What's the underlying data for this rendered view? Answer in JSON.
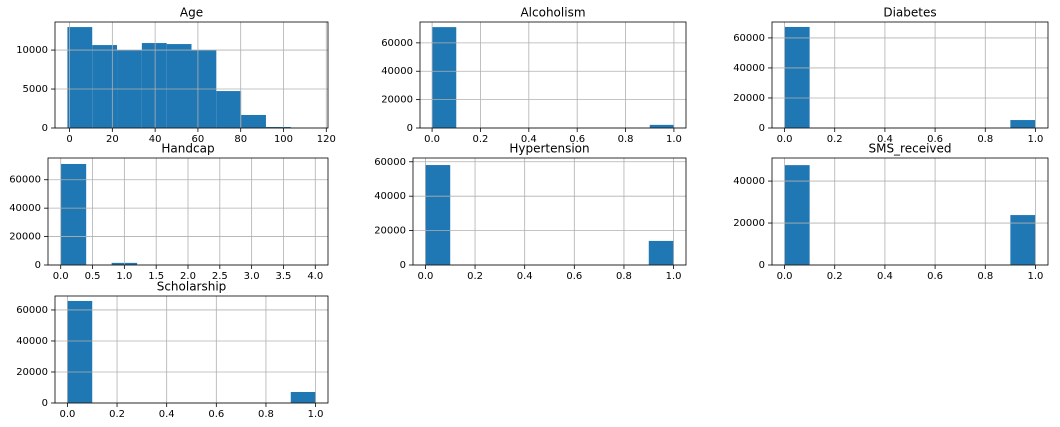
{
  "chart_data": [
    {
      "type": "histogram",
      "title": "Age",
      "bins": [
        -1,
        10.6,
        22.2,
        33.8,
        45.4,
        57,
        68.6,
        80.2,
        91.8,
        103.4,
        115
      ],
      "counts": [
        12950,
        10640,
        10000,
        10900,
        10770,
        10000,
        4740,
        1670,
        130,
        10
      ],
      "color": "#1f77b4",
      "xlim": [
        -6.8,
        120.8
      ],
      "ylim": [
        0,
        13600
      ],
      "xticks": [
        0,
        20,
        40,
        60,
        80,
        100,
        120
      ],
      "yticks": [
        0,
        5000,
        10000
      ],
      "grid": true
    },
    {
      "type": "histogram",
      "title": "Alcoholism",
      "bins": [
        0,
        0.1,
        0.2,
        0.3,
        0.4,
        0.5,
        0.6,
        0.7,
        0.8,
        0.9,
        1.0
      ],
      "counts": [
        71100,
        0,
        0,
        0,
        0,
        0,
        0,
        0,
        0,
        2200
      ],
      "color": "#1f77b4",
      "xlim": [
        -0.05,
        1.05
      ],
      "ylim": [
        0,
        74700
      ],
      "xticks": [
        {
          "value": 0,
          "label": "0.0"
        },
        {
          "value": 0.2,
          "label": "0.2"
        },
        {
          "value": 0.4,
          "label": "0.4"
        },
        {
          "value": 0.6,
          "label": "0.6"
        },
        {
          "value": 0.8,
          "label": "0.8"
        },
        {
          "value": 1,
          "label": "1.0"
        }
      ],
      "yticks": [
        0,
        20000,
        40000,
        60000
      ],
      "grid": true
    },
    {
      "type": "histogram",
      "title": "Diabetes",
      "bins": [
        0,
        0.1,
        0.2,
        0.3,
        0.4,
        0.5,
        0.6,
        0.7,
        0.8,
        0.9,
        1.0
      ],
      "counts": [
        67300,
        0,
        0,
        0,
        0,
        0,
        0,
        0,
        0,
        5300
      ],
      "color": "#1f77b4",
      "xlim": [
        -0.05,
        1.05
      ],
      "ylim": [
        0,
        70600
      ],
      "xticks": [
        {
          "value": 0,
          "label": "0.0"
        },
        {
          "value": 0.2,
          "label": "0.2"
        },
        {
          "value": 0.4,
          "label": "0.4"
        },
        {
          "value": 0.6,
          "label": "0.6"
        },
        {
          "value": 0.8,
          "label": "0.8"
        },
        {
          "value": 1,
          "label": "1.0"
        }
      ],
      "yticks": [
        0,
        20000,
        40000,
        60000
      ],
      "grid": true
    },
    {
      "type": "histogram",
      "title": "Handcap",
      "bins": [
        0,
        0.4,
        0.8,
        1.2,
        1.6,
        2.0,
        2.4,
        2.8,
        3.2,
        3.6,
        4.0
      ],
      "counts": [
        71100,
        0,
        1500,
        0,
        0,
        180,
        0,
        10,
        0,
        3
      ],
      "color": "#1f77b4",
      "xlim": [
        -0.2,
        4.2
      ],
      "ylim": [
        0,
        75300
      ],
      "xticks": [
        {
          "value": 0,
          "label": "0.0"
        },
        {
          "value": 0.5,
          "label": "0.5"
        },
        {
          "value": 1,
          "label": "1.0"
        },
        {
          "value": 1.5,
          "label": "1.5"
        },
        {
          "value": 2,
          "label": "2.0"
        },
        {
          "value": 2.5,
          "label": "2.5"
        },
        {
          "value": 3,
          "label": "3.0"
        },
        {
          "value": 3.5,
          "label": "3.5"
        },
        {
          "value": 4,
          "label": "4.0"
        }
      ],
      "yticks": [
        0,
        20000,
        40000,
        60000
      ],
      "grid": true
    },
    {
      "type": "histogram",
      "title": "Hypertension",
      "bins": [
        0,
        0.1,
        0.2,
        0.3,
        0.4,
        0.5,
        0.6,
        0.7,
        0.8,
        0.9,
        1.0
      ],
      "counts": [
        58100,
        0,
        0,
        0,
        0,
        0,
        0,
        0,
        0,
        14000
      ],
      "color": "#1f77b4",
      "xlim": [
        -0.05,
        1.05
      ],
      "ylim": [
        0,
        62200
      ],
      "xticks": [
        {
          "value": 0,
          "label": "0.0"
        },
        {
          "value": 0.2,
          "label": "0.2"
        },
        {
          "value": 0.4,
          "label": "0.4"
        },
        {
          "value": 0.6,
          "label": "0.6"
        },
        {
          "value": 0.8,
          "label": "0.8"
        },
        {
          "value": 1,
          "label": "1.0"
        }
      ],
      "yticks": [
        0,
        20000,
        40000,
        60000
      ],
      "grid": true
    },
    {
      "type": "histogram",
      "title": "SMS_received",
      "bins": [
        0,
        0.1,
        0.2,
        0.3,
        0.4,
        0.5,
        0.6,
        0.7,
        0.8,
        0.9,
        1.0
      ],
      "counts": [
        47600,
        0,
        0,
        0,
        0,
        0,
        0,
        0,
        0,
        23800
      ],
      "color": "#1f77b4",
      "xlim": [
        -0.05,
        1.05
      ],
      "ylim": [
        0,
        51000
      ],
      "xticks": [
        {
          "value": 0,
          "label": "0.0"
        },
        {
          "value": 0.2,
          "label": "0.2"
        },
        {
          "value": 0.4,
          "label": "0.4"
        },
        {
          "value": 0.6,
          "label": "0.6"
        },
        {
          "value": 0.8,
          "label": "0.8"
        },
        {
          "value": 1,
          "label": "1.0"
        }
      ],
      "yticks": [
        0,
        20000,
        40000
      ],
      "grid": true
    },
    {
      "type": "histogram",
      "title": "Scholarship",
      "bins": [
        0,
        0.1,
        0.2,
        0.3,
        0.4,
        0.5,
        0.6,
        0.7,
        0.8,
        0.9,
        1.0
      ],
      "counts": [
        65800,
        0,
        0,
        0,
        0,
        0,
        0,
        0,
        0,
        7100
      ],
      "color": "#1f77b4",
      "xlim": [
        -0.05,
        1.05
      ],
      "ylim": [
        0,
        69000
      ],
      "xticks": [
        {
          "value": 0,
          "label": "0.0"
        },
        {
          "value": 0.2,
          "label": "0.2"
        },
        {
          "value": 0.4,
          "label": "0.4"
        },
        {
          "value": 0.6,
          "label": "0.6"
        },
        {
          "value": 0.8,
          "label": "0.8"
        },
        {
          "value": 1,
          "label": "1.0"
        }
      ],
      "yticks": [
        0,
        20000,
        40000,
        60000
      ],
      "grid": true
    }
  ]
}
